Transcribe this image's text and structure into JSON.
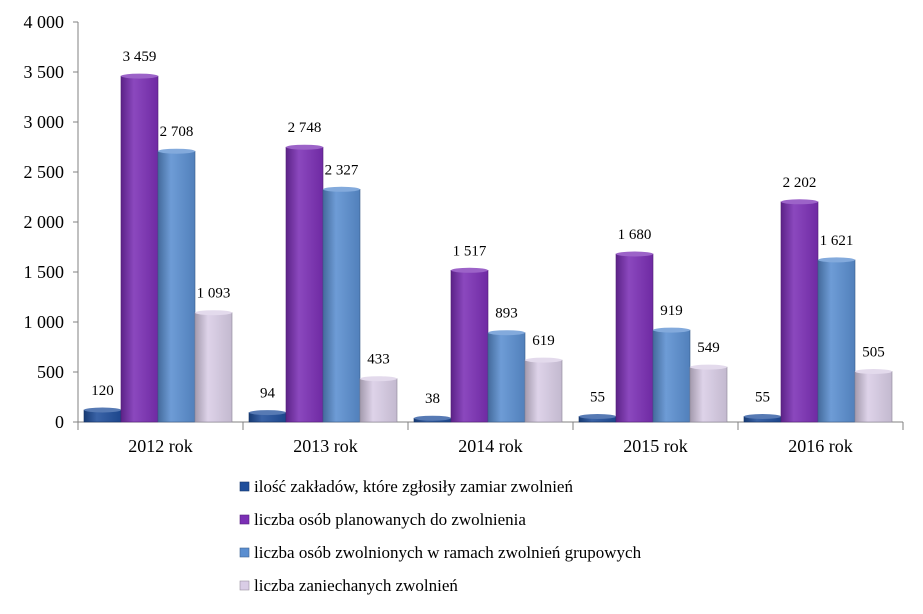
{
  "chart_data": {
    "type": "bar",
    "categories": [
      "2012 rok",
      "2013 rok",
      "2014 rok",
      "2015 rok",
      "2016 rok"
    ],
    "series": [
      {
        "name": "ilość zakładów, które zgłosiły zamiar zwolnień",
        "values": [
          120,
          94,
          38,
          55,
          55
        ],
        "labels": [
          "120",
          "94",
          "38",
          "55",
          "55"
        ],
        "color": "#1F4E9B"
      },
      {
        "name": "liczba osób planowanych do zwolnienia",
        "values": [
          3459,
          2748,
          1517,
          1680,
          2202
        ],
        "labels": [
          "3 459",
          "2 748",
          "1 517",
          "1 680",
          "2 202"
        ],
        "color": "#7B2FB5"
      },
      {
        "name": "liczba osób zwolnionych w ramach zwolnień grupowych",
        "values": [
          2708,
          2327,
          893,
          919,
          1621
        ],
        "labels": [
          "2 708",
          "2 327",
          "893",
          "919",
          "1 621"
        ],
        "color": "#5A8ED0"
      },
      {
        "name": "liczba zaniechanych zwolnień",
        "values": [
          1093,
          433,
          619,
          549,
          505
        ],
        "labels": [
          "1 093",
          "433",
          "619",
          "549",
          "505"
        ],
        "color": "#D9CDE6"
      }
    ],
    "ylim": [
      0,
      4000
    ],
    "yticks": [
      0,
      500,
      1000,
      1500,
      2000,
      2500,
      3000,
      3500,
      4000
    ],
    "ytick_labels": [
      "0",
      "500",
      "1 000",
      "1 500",
      "2 000",
      "2 500",
      "3 000",
      "3 500",
      "4 000"
    ],
    "title": "",
    "xlabel": "",
    "ylabel": "",
    "grid": false,
    "legend": "bottom"
  }
}
